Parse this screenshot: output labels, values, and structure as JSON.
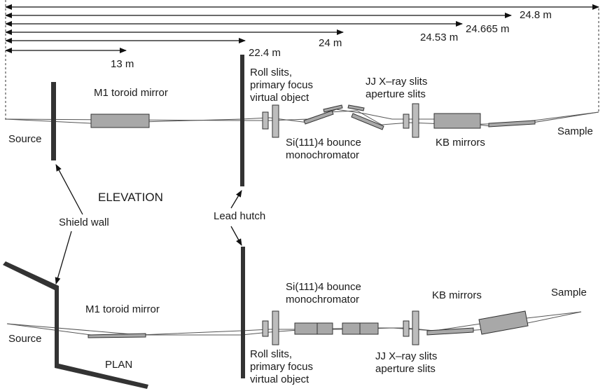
{
  "distances": [
    "24.8 m",
    "24.665 m",
    "24.53 m",
    "24 m",
    "22.4 m",
    "13 m"
  ],
  "elevation": {
    "title": "ELEVATION",
    "source": "Source",
    "m1_mirror": "M1 toroid mirror",
    "roll_slits": [
      "Roll slits,",
      "primary focus",
      "virtual object"
    ],
    "jj_slits": [
      "JJ X–ray slits",
      "aperture slits"
    ],
    "mono": [
      "Si(111)4 bounce",
      "monochromator"
    ],
    "kb_mirrors": "KB mirrors",
    "sample": "Sample"
  },
  "shared": {
    "shield_wall": "Shield wall",
    "lead_hutch": "Lead hutch"
  },
  "plan": {
    "title": "PLAN",
    "source": "Source",
    "m1_mirror": "M1 toroid mirror",
    "mono": [
      "Si(111)4 bounce",
      "monochromator"
    ],
    "kb_mirrors": "KB mirrors",
    "sample": "Sample",
    "roll_slits": [
      "Roll slits,",
      "primary focus",
      "virtual object"
    ],
    "jj_slits": [
      "JJ X–ray slits",
      "aperture slits"
    ]
  }
}
